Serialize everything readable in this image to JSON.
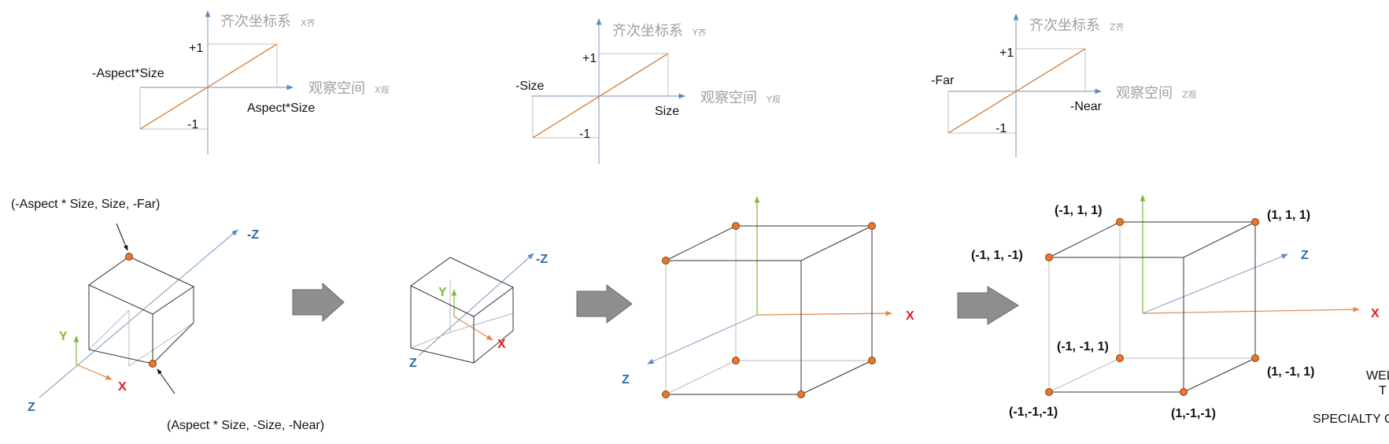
{
  "graphs": [
    {
      "y_title": "齐次坐标系",
      "y_sub": "X齐",
      "x_title": "观察空间",
      "x_sub": "X观",
      "neg_label": "-Aspect*Size",
      "pos_label": "Aspect*Size",
      "plus_one": "+1",
      "minus_one": "-1"
    },
    {
      "y_title": "齐次坐标系",
      "y_sub": "Y齐",
      "x_title": "观察空间",
      "x_sub": "Y观",
      "neg_label": "-Size",
      "pos_label": "Size",
      "plus_one": "+1",
      "minus_one": "-1"
    },
    {
      "y_title": "齐次坐标系",
      "y_sub": "Z齐",
      "x_title": "观察空间",
      "x_sub": "Z观",
      "neg_label": "-Far",
      "pos_label": "-Near",
      "plus_one": "+1",
      "minus_one": "-1"
    }
  ],
  "step1": {
    "top_callout": "(-Aspect * Size, Size,  -Far)",
    "bottom_callout": "(Aspect * Size, -Size,  -Near)",
    "neg_z": "-Z",
    "y": "Y",
    "x": "X",
    "z": "Z"
  },
  "step2": {
    "neg_z": "-Z",
    "y": "Y",
    "x": "X",
    "z": "Z"
  },
  "step3": {
    "x": "X",
    "z": "Z"
  },
  "step4": {
    "v_top_back_left": "(-1, 1, 1)",
    "v_top_back_right": "(1, 1, 1)",
    "v_top_front_left": "(-1, 1, -1)",
    "v_bot_back_left": "(-1, -1, 1)",
    "v_bot_back_right": "(1, -1, 1)",
    "v_bot_front_left": "(-1,-1,-1)",
    "v_bot_front_right": "(1,-1,-1)",
    "z": "Z",
    "x": "X"
  },
  "watermark": {
    "line1": "WEL",
    "line2": "T",
    "line3": "SPECIALTY CO"
  },
  "colors": {
    "axis": "#8fa8c8",
    "diagonal": "#d4884a",
    "vertex": "#e8762e",
    "x_axis": "#e01e1e",
    "y_axis": "#7fba3a",
    "z_axis": "#2e6da4"
  }
}
